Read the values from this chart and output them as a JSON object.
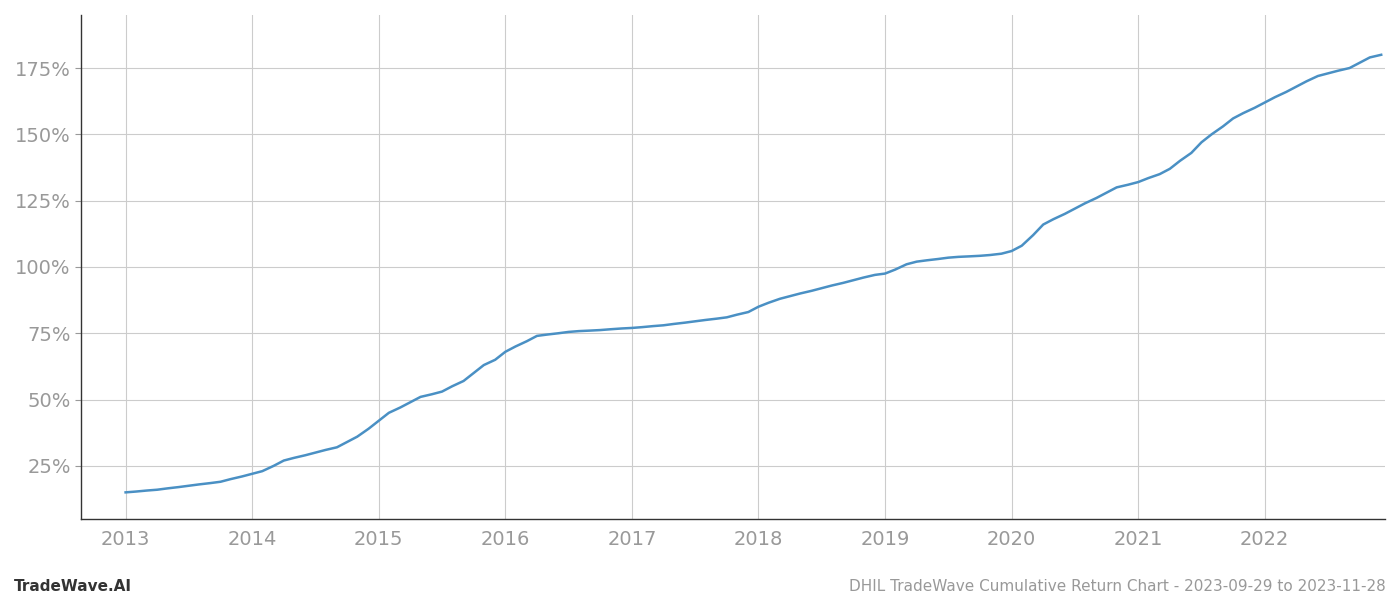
{
  "title": "DHIL TradeWave Cumulative Return Chart - 2023-09-29 to 2023-11-28",
  "left_label": "TradeWave.AI",
  "line_color": "#4a90c4",
  "background_color": "#ffffff",
  "grid_color": "#cccccc",
  "x_years": [
    2013,
    2014,
    2015,
    2016,
    2017,
    2018,
    2019,
    2020,
    2021,
    2022
  ],
  "x_values": [
    2013.0,
    2013.08,
    2013.17,
    2013.25,
    2013.33,
    2013.42,
    2013.5,
    2013.58,
    2013.67,
    2013.75,
    2013.83,
    2013.92,
    2014.0,
    2014.08,
    2014.17,
    2014.25,
    2014.33,
    2014.42,
    2014.5,
    2014.58,
    2014.67,
    2014.75,
    2014.83,
    2014.92,
    2015.0,
    2015.08,
    2015.17,
    2015.25,
    2015.33,
    2015.42,
    2015.5,
    2015.58,
    2015.67,
    2015.75,
    2015.83,
    2015.92,
    2016.0,
    2016.08,
    2016.17,
    2016.25,
    2016.33,
    2016.42,
    2016.5,
    2016.58,
    2016.67,
    2016.75,
    2016.83,
    2016.92,
    2017.0,
    2017.08,
    2017.17,
    2017.25,
    2017.33,
    2017.42,
    2017.5,
    2017.58,
    2017.67,
    2017.75,
    2017.83,
    2017.92,
    2018.0,
    2018.08,
    2018.17,
    2018.25,
    2018.33,
    2018.42,
    2018.5,
    2018.58,
    2018.67,
    2018.75,
    2018.83,
    2018.92,
    2019.0,
    2019.08,
    2019.17,
    2019.25,
    2019.33,
    2019.42,
    2019.5,
    2019.58,
    2019.67,
    2019.75,
    2019.83,
    2019.92,
    2020.0,
    2020.08,
    2020.17,
    2020.25,
    2020.33,
    2020.42,
    2020.5,
    2020.58,
    2020.67,
    2020.75,
    2020.83,
    2020.92,
    2021.0,
    2021.08,
    2021.17,
    2021.25,
    2021.33,
    2021.42,
    2021.5,
    2021.58,
    2021.67,
    2021.75,
    2021.83,
    2021.92,
    2022.0,
    2022.08,
    2022.17,
    2022.25,
    2022.33,
    2022.42,
    2022.5,
    2022.58,
    2022.67,
    2022.75,
    2022.83,
    2022.92
  ],
  "y_values": [
    15,
    15.3,
    15.7,
    16,
    16.5,
    17,
    17.5,
    18,
    18.5,
    19,
    20,
    21,
    22,
    23,
    25,
    27,
    28,
    29,
    30,
    31,
    32,
    34,
    36,
    39,
    42,
    45,
    47,
    49,
    51,
    52,
    53,
    55,
    57,
    60,
    63,
    65,
    68,
    70,
    72,
    74,
    74.5,
    75,
    75.5,
    75.8,
    76,
    76.2,
    76.5,
    76.8,
    77,
    77.3,
    77.7,
    78,
    78.5,
    79,
    79.5,
    80,
    80.5,
    81,
    82,
    83,
    85,
    86.5,
    88,
    89,
    90,
    91,
    92,
    93,
    94,
    95,
    96,
    97,
    97.5,
    99,
    101,
    102,
    102.5,
    103,
    103.5,
    103.8,
    104,
    104.2,
    104.5,
    105,
    106,
    108,
    112,
    116,
    118,
    120,
    122,
    124,
    126,
    128,
    130,
    131,
    132,
    133.5,
    135,
    137,
    140,
    143,
    147,
    150,
    153,
    156,
    158,
    160,
    162,
    164,
    166,
    168,
    170,
    172,
    173,
    174,
    175,
    177,
    179,
    180
  ],
  "yticks": [
    25,
    50,
    75,
    100,
    125,
    150,
    175
  ],
  "ylim": [
    5,
    195
  ],
  "xlim": [
    2012.65,
    2022.95
  ],
  "tick_label_color": "#999999",
  "tick_label_fontsize": 14,
  "footer_fontsize": 11,
  "line_width": 1.8,
  "left_spine_color": "#333333",
  "bottom_spine_color": "#333333"
}
